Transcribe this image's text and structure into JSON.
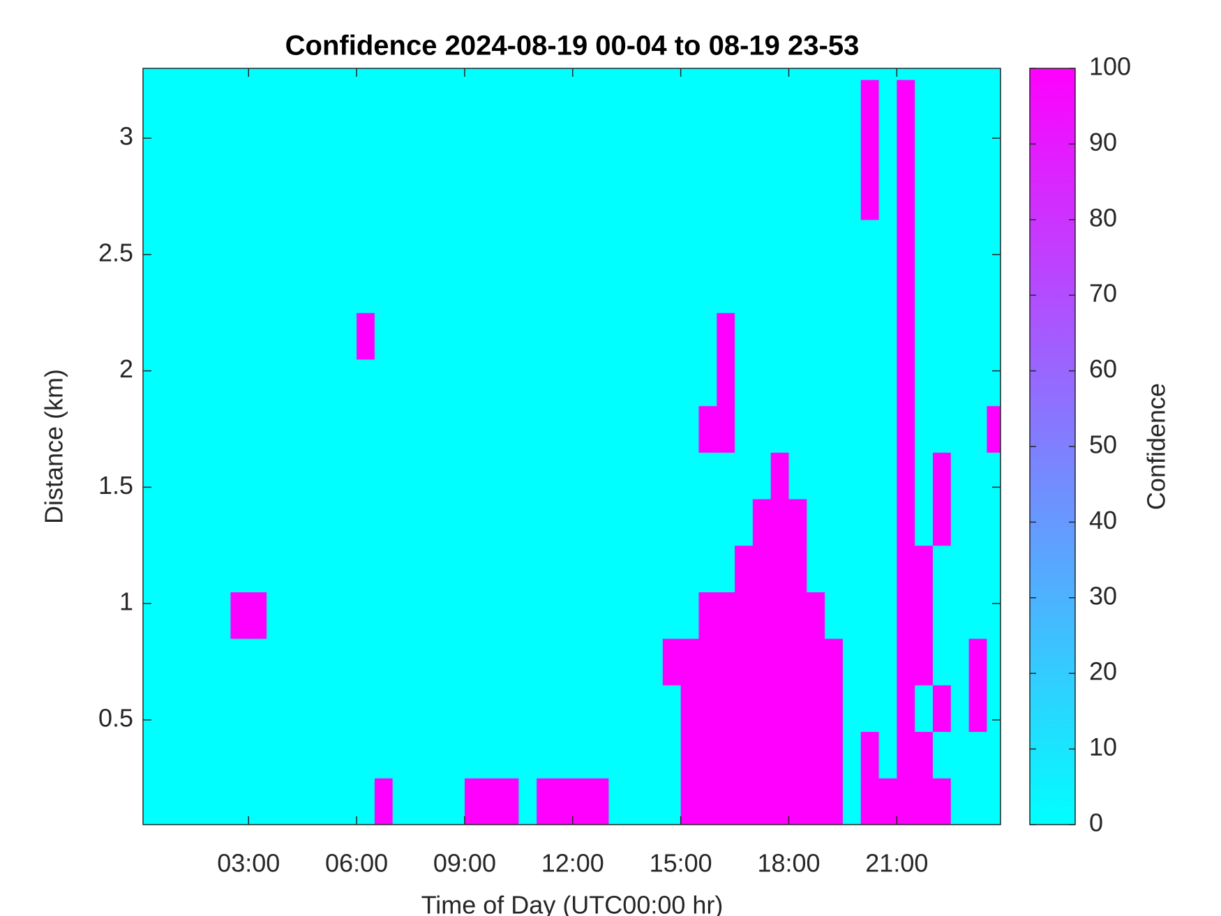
{
  "chart_data": {
    "type": "heatmap",
    "title": "Confidence 2024-08-19 00-04 to 08-19 23-53",
    "x_label": "Time of Day (UTC00:00 hr)",
    "y_label": "Distance (km)",
    "colorbar_label": "Confidence",
    "colormap": [
      "#00ffff",
      "#ff00ff"
    ],
    "clim": [
      0,
      100
    ],
    "cticks": [
      0,
      10,
      20,
      30,
      40,
      50,
      60,
      70,
      80,
      90,
      100
    ],
    "xlim": [
      0.07,
      23.88
    ],
    "ylim": [
      0.05,
      3.3
    ],
    "xticks": [
      {
        "value": 3,
        "label": "03:00"
      },
      {
        "value": 6,
        "label": "06:00"
      },
      {
        "value": 9,
        "label": "09:00"
      },
      {
        "value": 12,
        "label": "12:00"
      },
      {
        "value": 15,
        "label": "15:00"
      },
      {
        "value": 18,
        "label": "18:00"
      },
      {
        "value": 21,
        "label": "21:00"
      }
    ],
    "yticks": [
      0.5,
      1,
      1.5,
      2,
      2.5,
      3
    ],
    "x": [
      0.25,
      0.75,
      1.25,
      1.75,
      2.25,
      2.75,
      3.25,
      3.75,
      4.25,
      4.75,
      5.25,
      5.75,
      6.25,
      6.75,
      7.25,
      7.75,
      8.25,
      8.75,
      9.25,
      9.75,
      10.25,
      10.75,
      11.25,
      11.75,
      12.25,
      12.75,
      13.25,
      13.75,
      14.25,
      14.75,
      15.25,
      15.75,
      16.25,
      16.75,
      17.25,
      17.75,
      18.25,
      18.75,
      19.25,
      19.75,
      20.25,
      20.75,
      21.25,
      21.75,
      22.25,
      22.75,
      23.25,
      23.75
    ],
    "y": [
      0.15,
      0.35,
      0.55,
      0.75,
      0.95,
      1.15,
      1.35,
      1.55,
      1.75,
      1.95,
      2.15,
      2.35,
      2.55,
      2.75,
      2.95,
      3.15
    ],
    "z": [
      [
        0,
        0,
        0,
        0,
        0,
        0,
        0,
        0,
        0,
        0,
        0,
        0,
        0,
        100,
        0,
        0,
        0,
        0,
        100,
        100,
        100,
        0,
        100,
        100,
        100,
        100,
        0,
        0,
        0,
        0,
        100,
        100,
        100,
        100,
        100,
        100,
        100,
        100,
        100,
        0,
        100,
        100,
        100,
        100,
        100,
        0,
        0,
        0
      ],
      [
        0,
        0,
        0,
        0,
        0,
        0,
        0,
        0,
        0,
        0,
        0,
        0,
        0,
        0,
        0,
        0,
        0,
        0,
        0,
        0,
        0,
        0,
        0,
        0,
        0,
        0,
        0,
        0,
        0,
        0,
        100,
        100,
        100,
        100,
        100,
        100,
        100,
        100,
        100,
        0,
        100,
        0,
        100,
        100,
        0,
        0,
        0,
        0
      ],
      [
        0,
        0,
        0,
        0,
        0,
        0,
        0,
        0,
        0,
        0,
        0,
        0,
        0,
        0,
        0,
        0,
        0,
        0,
        0,
        0,
        0,
        0,
        0,
        0,
        0,
        0,
        0,
        0,
        0,
        0,
        100,
        100,
        100,
        100,
        100,
        100,
        100,
        100,
        100,
        0,
        0,
        0,
        100,
        0,
        100,
        0,
        100,
        0
      ],
      [
        0,
        0,
        0,
        0,
        0,
        0,
        0,
        0,
        0,
        0,
        0,
        0,
        0,
        0,
        0,
        0,
        0,
        0,
        0,
        0,
        0,
        0,
        0,
        0,
        0,
        0,
        0,
        0,
        0,
        100,
        100,
        100,
        100,
        100,
        100,
        100,
        100,
        100,
        100,
        0,
        0,
        0,
        100,
        100,
        0,
        0,
        100,
        0
      ],
      [
        0,
        0,
        0,
        0,
        0,
        100,
        100,
        0,
        0,
        0,
        0,
        0,
        0,
        0,
        0,
        0,
        0,
        0,
        0,
        0,
        0,
        0,
        0,
        0,
        0,
        0,
        0,
        0,
        0,
        0,
        0,
        100,
        100,
        100,
        100,
        100,
        100,
        100,
        0,
        0,
        0,
        0,
        100,
        100,
        0,
        0,
        0,
        0
      ],
      [
        0,
        0,
        0,
        0,
        0,
        0,
        0,
        0,
        0,
        0,
        0,
        0,
        0,
        0,
        0,
        0,
        0,
        0,
        0,
        0,
        0,
        0,
        0,
        0,
        0,
        0,
        0,
        0,
        0,
        0,
        0,
        0,
        0,
        100,
        100,
        100,
        100,
        0,
        0,
        0,
        0,
        0,
        100,
        100,
        0,
        0,
        0,
        0
      ],
      [
        0,
        0,
        0,
        0,
        0,
        0,
        0,
        0,
        0,
        0,
        0,
        0,
        0,
        0,
        0,
        0,
        0,
        0,
        0,
        0,
        0,
        0,
        0,
        0,
        0,
        0,
        0,
        0,
        0,
        0,
        0,
        0,
        0,
        0,
        100,
        100,
        100,
        0,
        0,
        0,
        0,
        0,
        100,
        0,
        100,
        0,
        0,
        0
      ],
      [
        0,
        0,
        0,
        0,
        0,
        0,
        0,
        0,
        0,
        0,
        0,
        0,
        0,
        0,
        0,
        0,
        0,
        0,
        0,
        0,
        0,
        0,
        0,
        0,
        0,
        0,
        0,
        0,
        0,
        0,
        0,
        0,
        0,
        0,
        0,
        100,
        0,
        0,
        0,
        0,
        0,
        0,
        100,
        0,
        100,
        0,
        0,
        0
      ],
      [
        0,
        0,
        0,
        0,
        0,
        0,
        0,
        0,
        0,
        0,
        0,
        0,
        0,
        0,
        0,
        0,
        0,
        0,
        0,
        0,
        0,
        0,
        0,
        0,
        0,
        0,
        0,
        0,
        0,
        0,
        0,
        100,
        100,
        0,
        0,
        0,
        0,
        0,
        0,
        0,
        0,
        0,
        100,
        0,
        0,
        0,
        0,
        100
      ],
      [
        0,
        0,
        0,
        0,
        0,
        0,
        0,
        0,
        0,
        0,
        0,
        0,
        0,
        0,
        0,
        0,
        0,
        0,
        0,
        0,
        0,
        0,
        0,
        0,
        0,
        0,
        0,
        0,
        0,
        0,
        0,
        0,
        100,
        0,
        0,
        0,
        0,
        0,
        0,
        0,
        0,
        0,
        100,
        0,
        0,
        0,
        0,
        0
      ],
      [
        0,
        0,
        0,
        0,
        0,
        0,
        0,
        0,
        0,
        0,
        0,
        0,
        100,
        0,
        0,
        0,
        0,
        0,
        0,
        0,
        0,
        0,
        0,
        0,
        0,
        0,
        0,
        0,
        0,
        0,
        0,
        0,
        100,
        0,
        0,
        0,
        0,
        0,
        0,
        0,
        0,
        0,
        100,
        0,
        0,
        0,
        0,
        0
      ],
      [
        0,
        0,
        0,
        0,
        0,
        0,
        0,
        0,
        0,
        0,
        0,
        0,
        0,
        0,
        0,
        0,
        0,
        0,
        0,
        0,
        0,
        0,
        0,
        0,
        0,
        0,
        0,
        0,
        0,
        0,
        0,
        0,
        0,
        0,
        0,
        0,
        0,
        0,
        0,
        0,
        0,
        0,
        100,
        0,
        0,
        0,
        0,
        0
      ],
      [
        0,
        0,
        0,
        0,
        0,
        0,
        0,
        0,
        0,
        0,
        0,
        0,
        0,
        0,
        0,
        0,
        0,
        0,
        0,
        0,
        0,
        0,
        0,
        0,
        0,
        0,
        0,
        0,
        0,
        0,
        0,
        0,
        0,
        0,
        0,
        0,
        0,
        0,
        0,
        0,
        0,
        0,
        100,
        0,
        0,
        0,
        0,
        0
      ],
      [
        0,
        0,
        0,
        0,
        0,
        0,
        0,
        0,
        0,
        0,
        0,
        0,
        0,
        0,
        0,
        0,
        0,
        0,
        0,
        0,
        0,
        0,
        0,
        0,
        0,
        0,
        0,
        0,
        0,
        0,
        0,
        0,
        0,
        0,
        0,
        0,
        0,
        0,
        0,
        0,
        100,
        0,
        100,
        0,
        0,
        0,
        0,
        0
      ],
      [
        0,
        0,
        0,
        0,
        0,
        0,
        0,
        0,
        0,
        0,
        0,
        0,
        0,
        0,
        0,
        0,
        0,
        0,
        0,
        0,
        0,
        0,
        0,
        0,
        0,
        0,
        0,
        0,
        0,
        0,
        0,
        0,
        0,
        0,
        0,
        0,
        0,
        0,
        0,
        0,
        100,
        0,
        100,
        0,
        0,
        0,
        0,
        0
      ],
      [
        0,
        0,
        0,
        0,
        0,
        0,
        0,
        0,
        0,
        0,
        0,
        0,
        0,
        0,
        0,
        0,
        0,
        0,
        0,
        0,
        0,
        0,
        0,
        0,
        0,
        0,
        0,
        0,
        0,
        0,
        0,
        0,
        0,
        0,
        0,
        0,
        0,
        0,
        0,
        0,
        100,
        0,
        100,
        0,
        0,
        0,
        0,
        0
      ]
    ]
  }
}
